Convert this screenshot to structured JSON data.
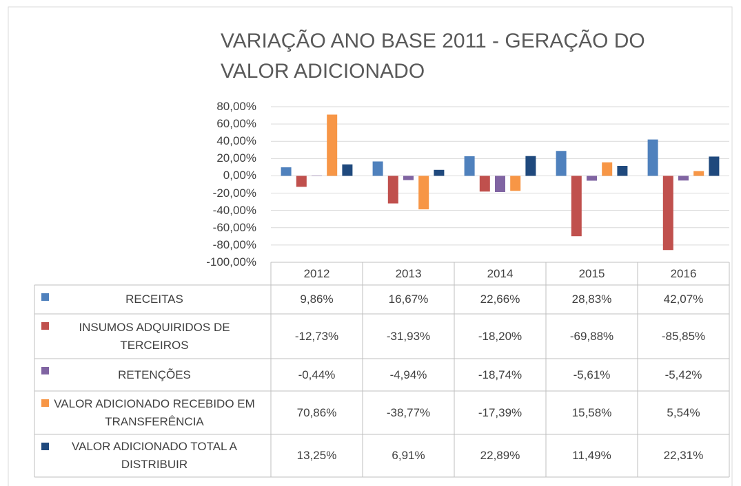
{
  "chart_data": {
    "type": "bar",
    "title": "VARIAÇÃO ANO BASE 2011 - GERAÇÃO DO VALOR ADICIONADO",
    "categories": [
      "2012",
      "2013",
      "2014",
      "2015",
      "2016"
    ],
    "ylim": [
      -100,
      80
    ],
    "yticks": [
      {
        "value": -100,
        "label": "-100,00%"
      },
      {
        "value": -80,
        "label": "-80,00%"
      },
      {
        "value": -60,
        "label": "-60,00%"
      },
      {
        "value": -40,
        "label": "-40,00%"
      },
      {
        "value": -20,
        "label": "-20,00%"
      },
      {
        "value": 0,
        "label": "0,00%"
      },
      {
        "value": 20,
        "label": "20,00%"
      },
      {
        "value": 40,
        "label": "40,00%"
      },
      {
        "value": 60,
        "label": "60,00%"
      },
      {
        "value": 80,
        "label": "80,00%"
      }
    ],
    "grid": true,
    "series": [
      {
        "name": "RECEITAS",
        "color": "#4f81bd",
        "values": [
          9.86,
          16.67,
          22.66,
          28.83,
          42.07
        ],
        "value_labels": [
          "9,86%",
          "16,67%",
          "22,66%",
          "28,83%",
          "42,07%"
        ]
      },
      {
        "name": "INSUMOS ADQUIRIDOS DE TERCEIROS",
        "color": "#c0504d",
        "values": [
          -12.73,
          -31.93,
          -18.2,
          -69.88,
          -85.85
        ],
        "value_labels": [
          "-12,73%",
          "-31,93%",
          "-18,20%",
          "-69,88%",
          "-85,85%"
        ]
      },
      {
        "name": "RETENÇÕES",
        "color": "#8064a2",
        "values": [
          -0.44,
          -4.94,
          -18.74,
          -5.61,
          -5.42
        ],
        "value_labels": [
          "-0,44%",
          "-4,94%",
          "-18,74%",
          "-5,61%",
          "-5,42%"
        ]
      },
      {
        "name": "VALOR ADICIONADO RECEBIDO EM TRANSFERÊNCIA",
        "color": "#f79646",
        "values": [
          70.86,
          -38.77,
          -17.39,
          15.58,
          5.54
        ],
        "value_labels": [
          "70,86%",
          "-38,77%",
          "-17,39%",
          "15,58%",
          "5,54%"
        ]
      },
      {
        "name": "VALOR ADICIONADO TOTAL A DISTRIBUIR",
        "color": "#1f497d",
        "values": [
          13.25,
          6.91,
          22.89,
          11.49,
          22.31
        ],
        "value_labels": [
          "13,25%",
          "6,91%",
          "22,89%",
          "11,49%",
          "22,31%"
        ]
      }
    ]
  }
}
